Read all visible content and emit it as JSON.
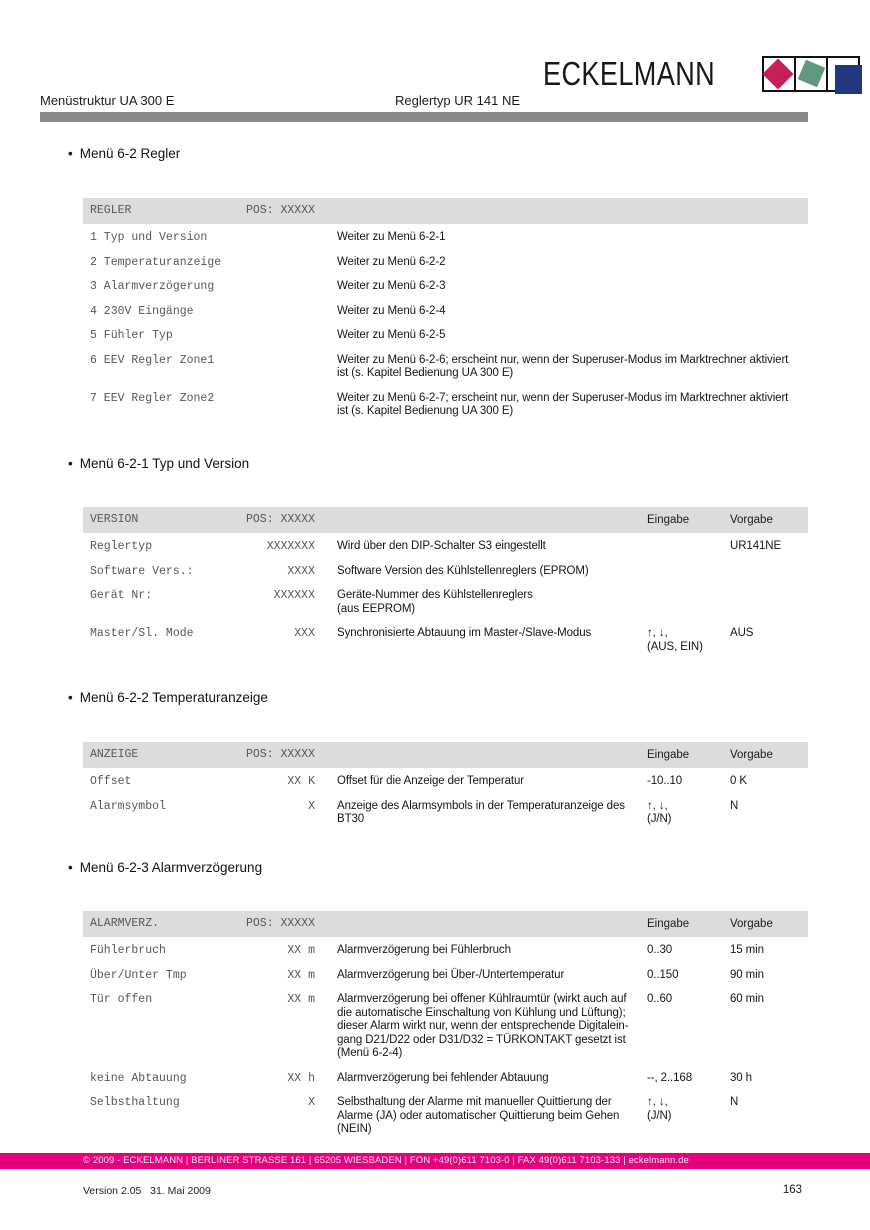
{
  "page": {
    "brand": "ECKELMANN",
    "header": {
      "left": "Menüstruktur UA 300 E",
      "center": "Reglertyp UR 141 NE"
    },
    "footer": {
      "bar_text": "© 2009 - ECKELMANN | BERLINER STRASSE 161 | 65205 WIESBADEN | FON +49(0)611 7103-0 | FAX 49(0)611 7103-133 | eckelmann.de",
      "version_line": "Version 2.05   31. Mai 2009",
      "page_number": "163"
    },
    "colors": {
      "accent_magenta": "#E5007D",
      "logo_red": "#C51F5A",
      "logo_green": "#61997E",
      "logo_blue": "#20397E",
      "header_rule_gray": "#8A8A8A",
      "table_header_gray": "#DCDCDC"
    }
  },
  "sections": [
    {
      "heading": "Menü 6-2 Regler",
      "table": {
        "title": "REGLER",
        "pos": "POS: XXXXX",
        "eingabe_label": "",
        "vorgabe_label": "",
        "rows": [
          {
            "name": "1 Typ und Version",
            "value": "",
            "desc": "Weiter zu Menü 6-2-1",
            "eingabe": "",
            "vorgabe": ""
          },
          {
            "name": "2 Temperaturanzeige",
            "value": "",
            "desc": "Weiter zu Menü 6-2-2",
            "eingabe": "",
            "vorgabe": ""
          },
          {
            "name": "3 Alarmverzögerung",
            "value": "",
            "desc": "Weiter zu Menü 6-2-3",
            "eingabe": "",
            "vorgabe": ""
          },
          {
            "name": "4 230V Eingänge",
            "value": "",
            "desc": "Weiter zu Menü 6-2-4",
            "eingabe": "",
            "vorgabe": ""
          },
          {
            "name": "5 Fühler Typ",
            "value": "",
            "desc": "Weiter zu Menü 6-2-5",
            "eingabe": "",
            "vorgabe": ""
          },
          {
            "name": "6 EEV Regler Zone1",
            "value": "",
            "desc": "Weiter zu Menü 6-2-6; erscheint nur, wenn der Superuser-Modus im Marktrechner aktiviert\nist (s. Kapitel Bedienung UA 300 E)",
            "eingabe": "",
            "vorgabe": ""
          },
          {
            "name": "7 EEV Regler Zone2",
            "value": "",
            "desc": "Weiter zu Menü 6-2-7; erscheint nur, wenn der Superuser-Modus im Marktrechner aktiviert\nist (s. Kapitel Bedienung UA 300 E)",
            "eingabe": "",
            "vorgabe": ""
          }
        ]
      }
    },
    {
      "heading": "Menü 6-2-1 Typ und Version",
      "table": {
        "title": "VERSION",
        "pos": "POS: XXXXX",
        "eingabe_label": "Eingabe",
        "vorgabe_label": "Vorgabe",
        "rows": [
          {
            "name": "Reglertyp",
            "value": "XXXXXXX",
            "desc": "Wird über den DIP-Schalter S3 eingestellt",
            "eingabe": "",
            "vorgabe": "UR141NE"
          },
          {
            "name": "Software Vers.:",
            "value": "XXXX",
            "desc": "Software Version des Kühlstellenreglers (EPROM)",
            "eingabe": "",
            "vorgabe": ""
          },
          {
            "name": "Gerät Nr:",
            "value": "XXXXXX",
            "desc": "Geräte-Nummer des Kühlstellenreglers\n(aus EEPROM)",
            "eingabe": "",
            "vorgabe": ""
          },
          {
            "name": "Master/Sl. Mode",
            "value": "XXX",
            "desc": "Synchronisierte Abtauung im Master-/Slave-Modus",
            "eingabe": "↑, ↓,\n(AUS, EIN)",
            "vorgabe": "AUS"
          }
        ]
      }
    },
    {
      "heading": "Menü 6-2-2 Temperaturanzeige",
      "table": {
        "title": "ANZEIGE",
        "pos": "POS: XXXXX",
        "eingabe_label": "Eingabe",
        "vorgabe_label": "Vorgabe",
        "rows": [
          {
            "name": "Offset",
            "value": "XX K",
            "desc": "Offset für die Anzeige der Temperatur",
            "eingabe": "-10..10",
            "vorgabe": "0 K"
          },
          {
            "name": "Alarmsymbol",
            "value": "X",
            "desc": "Anzeige des Alarmsymbols in der Temperaturanzeige des\nBT30",
            "eingabe": "↑, ↓,\n(J/N)",
            "vorgabe": "N"
          }
        ]
      }
    },
    {
      "heading": "Menü 6-2-3 Alarmverzögerung",
      "table": {
        "title": "ALARMVERZ.",
        "pos": "POS: XXXXX",
        "eingabe_label": "Eingabe",
        "vorgabe_label": "Vorgabe",
        "rows": [
          {
            "name": "Fühlerbruch",
            "value": "XX m",
            "desc": "Alarmverzögerung bei Fühlerbruch",
            "eingabe": "0..30",
            "vorgabe": "15 min"
          },
          {
            "name": "Über/Unter Tmp",
            "value": "XX m",
            "desc": "Alarmverzögerung bei Über-/Untertemperatur",
            "eingabe": "0..150",
            "vorgabe": "90 min"
          },
          {
            "name": "Tür offen",
            "value": "XX m",
            "desc": "Alarmverzögerung bei offener Kühlraumtür (wirkt auch auf\ndie automatische Einschaltung von Kühlung und Lüftung);\ndieser Alarm wirkt nur, wenn der entsprechende Digitalein-\ngang D21/D22 oder D31/D32 = TÜRKONTAKT gesetzt ist\n(Menü 6-2-4)",
            "eingabe": "0..60",
            "vorgabe": "60 min"
          },
          {
            "name": "keine Abtauung",
            "value": "XX h",
            "desc": "Alarmverzögerung bei fehlender Abtauung",
            "eingabe": "--, 2..168",
            "vorgabe": "30 h"
          },
          {
            "name": "Selbsthaltung",
            "value": "X",
            "desc": "Selbsthaltung der Alarme mit manueller Quittierung der\nAlarme (JA) oder automatischer Quittierung beim Gehen\n(NEIN)",
            "eingabe": "↑, ↓,\n(J/N)",
            "vorgabe": "N"
          }
        ]
      }
    }
  ]
}
